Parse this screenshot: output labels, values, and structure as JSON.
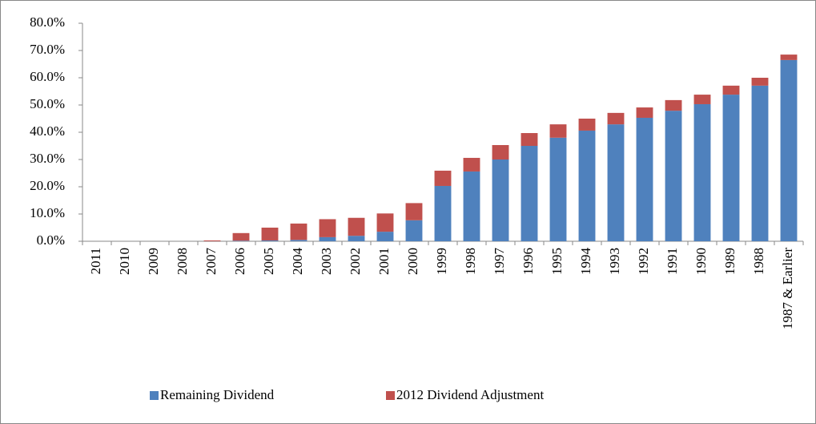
{
  "chart_data": {
    "type": "stacked-bar",
    "categories": [
      "2011",
      "2010",
      "2009",
      "2008",
      "2007",
      "2006",
      "2005",
      "2004",
      "2003",
      "2002",
      "2001",
      "2000",
      "1999",
      "1998",
      "1997",
      "1996",
      "1995",
      "1994",
      "1993",
      "1992",
      "1991",
      "1990",
      "1989",
      "1988",
      "1987 & Earlier"
    ],
    "series": [
      {
        "name": "Remaining Dividend",
        "color": "#4f81bd",
        "values": [
          0,
          0,
          0,
          0,
          0,
          0.2,
          0.3,
          0.5,
          1.5,
          2.0,
          3.5,
          7.7,
          20.3,
          25.6,
          30.0,
          35.0,
          38.0,
          40.6,
          42.9,
          45.3,
          47.9,
          50.3,
          53.8,
          57.1,
          66.5
        ]
      },
      {
        "name": "2012 Dividend Adjustment",
        "color": "#c0504d",
        "values": [
          0,
          0,
          0,
          0,
          0.3,
          2.8,
          4.7,
          6.0,
          6.6,
          6.6,
          6.7,
          6.3,
          5.6,
          5.0,
          5.3,
          4.7,
          4.9,
          4.4,
          4.2,
          3.8,
          3.9,
          3.5,
          3.3,
          2.9,
          2.0
        ]
      }
    ],
    "ylim": [
      0,
      80
    ],
    "yticks": [
      {
        "value": 0,
        "label": "0.0%"
      },
      {
        "value": 10,
        "label": "10.0%"
      },
      {
        "value": 20,
        "label": "20.0%"
      },
      {
        "value": 30,
        "label": "30.0%"
      },
      {
        "value": 40,
        "label": "40.0%"
      },
      {
        "value": 50,
        "label": "50.0%"
      },
      {
        "value": 60,
        "label": "60.0%"
      },
      {
        "value": 70,
        "label": "70.0%"
      },
      {
        "value": 80,
        "label": "80.0%"
      }
    ],
    "grid": false,
    "legend": "bottom"
  }
}
